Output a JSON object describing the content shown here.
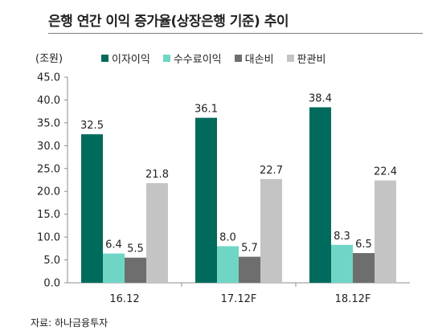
{
  "chart_data": {
    "type": "bar",
    "title": "은행 연간 이익 증가율(상장은행 기준) 추이",
    "unit": "(조원)",
    "categories": [
      "16.12",
      "17.12F",
      "18.12F"
    ],
    "series": [
      {
        "name": "이자이익",
        "color": "#006b5c",
        "values": [
          32.5,
          36.1,
          38.4
        ]
      },
      {
        "name": "수수료이익",
        "color": "#6fd6c6",
        "values": [
          6.4,
          8.0,
          8.3
        ]
      },
      {
        "name": "대손비",
        "color": "#6e6e6e",
        "values": [
          5.5,
          5.7,
          6.5
        ]
      },
      {
        "name": "판관비",
        "color": "#c4c4c4",
        "values": [
          21.8,
          22.7,
          22.4
        ]
      }
    ],
    "y_ticks": [
      "0.0",
      "5.0",
      "10.0",
      "15.0",
      "20.0",
      "25.0",
      "30.0",
      "35.0",
      "40.0",
      "45.0"
    ],
    "ylim": [
      0,
      45
    ],
    "grid": false,
    "legend_position": "top",
    "source": "자료: 하나금융투자"
  }
}
